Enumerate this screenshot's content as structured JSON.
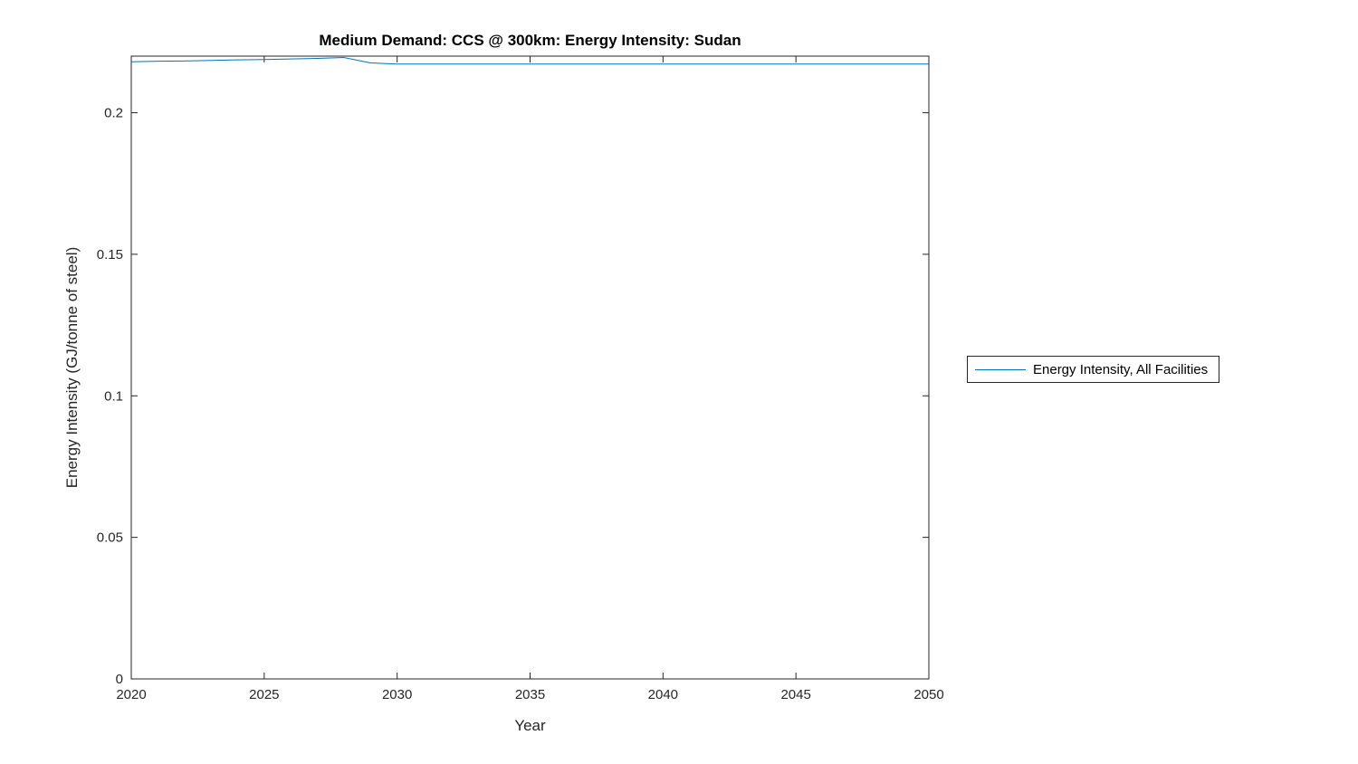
{
  "title": "Medium Demand: CCS @ 300km: Energy Intensity: Sudan",
  "xlabel": "Year",
  "ylabel": "Energy Intensity (GJ/tonne of steel)",
  "legend": {
    "entries": [
      {
        "label": "Energy Intensity, All Facilities",
        "color": "#0072BD"
      }
    ]
  },
  "axis": {
    "color": "#262626",
    "tick_label_color": "#262626",
    "xtick_labels": [
      "2020",
      "2025",
      "2030",
      "2035",
      "2040",
      "2045",
      "2050"
    ],
    "ytick_labels": [
      "0",
      "0.05",
      "0.1",
      "0.15",
      "0.2"
    ]
  },
  "chart_data": {
    "type": "line",
    "title": "Medium Demand: CCS @ 300km: Energy Intensity: Sudan",
    "xlabel": "Year",
    "ylabel": "Energy Intensity (GJ/tonne of steel)",
    "xlim": [
      2020,
      2050
    ],
    "ylim": [
      0,
      0.22
    ],
    "xticks": [
      2020,
      2025,
      2030,
      2035,
      2040,
      2045,
      2050
    ],
    "yticks": [
      0,
      0.05,
      0.1,
      0.15,
      0.2
    ],
    "grid": false,
    "legend_position": "right-outside",
    "series": [
      {
        "name": "Energy Intensity, All Facilities",
        "color": "#0072BD",
        "x": [
          2020,
          2021,
          2022,
          2023,
          2024,
          2025,
          2026,
          2027,
          2028,
          2029,
          2030,
          2031,
          2032,
          2033,
          2034,
          2035,
          2036,
          2037,
          2038,
          2039,
          2040,
          2041,
          2042,
          2043,
          2044,
          2045,
          2046,
          2047,
          2048,
          2049,
          2050
        ],
        "values": [
          0.218,
          0.2182,
          0.2183,
          0.2185,
          0.2187,
          0.2188,
          0.219,
          0.2192,
          0.2195,
          0.2176,
          0.2172,
          0.2172,
          0.2172,
          0.2172,
          0.2172,
          0.2172,
          0.2172,
          0.2172,
          0.2172,
          0.2172,
          0.2172,
          0.2172,
          0.2172,
          0.2172,
          0.2172,
          0.2172,
          0.2172,
          0.2172,
          0.2172,
          0.2172,
          0.2172
        ]
      }
    ]
  }
}
